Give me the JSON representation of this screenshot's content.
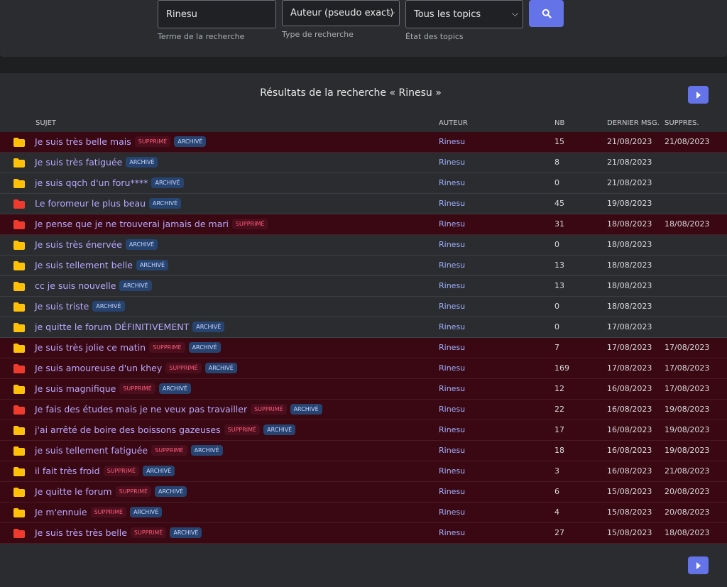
{
  "search": {
    "term": "Rinesu",
    "term_label": "Terme de la recherche",
    "type": "Auteur (pseudo exact)",
    "type_label": "Type de recherche",
    "state": "Tous les topics",
    "state_label": "État des topics"
  },
  "results": {
    "title": "Résultats de la recherche « Rinesu »",
    "columns": [
      "SUJET",
      "AUTEUR",
      "NB",
      "DERNIER MSG.",
      "SUPPRES."
    ],
    "badge_labels": {
      "deleted": "SUPPRIMÉ",
      "archived": "ARCHIVÉ"
    },
    "rows": [
      {
        "folder_color": "#ffc107",
        "subject": "Je suis très belle mais",
        "deleted": true,
        "archived": true,
        "author": "Rinesu",
        "nb": 15,
        "last": "21/08/2023",
        "deleted_on": "21/08/2023"
      },
      {
        "folder_color": "#ffc107",
        "subject": "Je suis très fatiguée",
        "deleted": false,
        "archived": true,
        "author": "Rinesu",
        "nb": 8,
        "last": "21/08/2023",
        "deleted_on": null
      },
      {
        "folder_color": "#ffc107",
        "subject": "je suis qqch d'un foru****",
        "deleted": false,
        "archived": true,
        "author": "Rinesu",
        "nb": 0,
        "last": "21/08/2023",
        "deleted_on": null
      },
      {
        "folder_color": "#f03a2e",
        "subject": "Le foromeur le plus beau",
        "deleted": false,
        "archived": true,
        "author": "Rinesu",
        "nb": 45,
        "last": "19/08/2023",
        "deleted_on": null
      },
      {
        "folder_color": "#f03a2e",
        "subject": "Je pense que je ne trouverai jamais de mari",
        "deleted": true,
        "archived": false,
        "author": "Rinesu",
        "nb": 31,
        "last": "18/08/2023",
        "deleted_on": "18/08/2023"
      },
      {
        "folder_color": "#ffc107",
        "subject": "Je suis très énervée",
        "deleted": false,
        "archived": true,
        "author": "Rinesu",
        "nb": 0,
        "last": "18/08/2023",
        "deleted_on": null
      },
      {
        "folder_color": "#ffc107",
        "subject": "Je suis tellement belle",
        "deleted": false,
        "archived": true,
        "author": "Rinesu",
        "nb": 13,
        "last": "18/08/2023",
        "deleted_on": null
      },
      {
        "folder_color": "#ffc107",
        "subject": "cc je suis nouvelle",
        "deleted": false,
        "archived": true,
        "author": "Rinesu",
        "nb": 13,
        "last": "18/08/2023",
        "deleted_on": null
      },
      {
        "folder_color": "#ffc107",
        "subject": "Je suis triste",
        "deleted": false,
        "archived": true,
        "author": "Rinesu",
        "nb": 0,
        "last": "18/08/2023",
        "deleted_on": null
      },
      {
        "folder_color": "#ffc107",
        "subject": "je quitte le forum DÉFINITIVEMENT",
        "deleted": false,
        "archived": true,
        "author": "Rinesu",
        "nb": 0,
        "last": "17/08/2023",
        "deleted_on": null
      },
      {
        "folder_color": "#ffc107",
        "subject": "Je suis très jolie ce matin",
        "deleted": true,
        "archived": true,
        "author": "Rinesu",
        "nb": 7,
        "last": "17/08/2023",
        "deleted_on": "17/08/2023"
      },
      {
        "folder_color": "#f03a2e",
        "subject": "Je suis amoureuse d'un khey",
        "deleted": true,
        "archived": true,
        "author": "Rinesu",
        "nb": 169,
        "last": "17/08/2023",
        "deleted_on": "17/08/2023"
      },
      {
        "folder_color": "#ffc107",
        "subject": "Je suis magnifique",
        "deleted": true,
        "archived": true,
        "author": "Rinesu",
        "nb": 12,
        "last": "16/08/2023",
        "deleted_on": "17/08/2023"
      },
      {
        "folder_color": "#f03a2e",
        "subject": "Je fais des études mais je ne veux pas travailler",
        "deleted": true,
        "archived": true,
        "author": "Rinesu",
        "nb": 22,
        "last": "16/08/2023",
        "deleted_on": "19/08/2023"
      },
      {
        "folder_color": "#ffc107",
        "subject": "j'ai arrêté de boire des boissons gazeuses",
        "deleted": true,
        "archived": true,
        "author": "Rinesu",
        "nb": 17,
        "last": "16/08/2023",
        "deleted_on": "19/08/2023"
      },
      {
        "folder_color": "#ffc107",
        "subject": "je suis tellement fatiguée",
        "deleted": true,
        "archived": true,
        "author": "Rinesu",
        "nb": 18,
        "last": "16/08/2023",
        "deleted_on": "19/08/2023"
      },
      {
        "folder_color": "#ffc107",
        "subject": "il fait très froid",
        "deleted": true,
        "archived": true,
        "author": "Rinesu",
        "nb": 3,
        "last": "16/08/2023",
        "deleted_on": "21/08/2023"
      },
      {
        "folder_color": "#ffc107",
        "subject": "Je quitte le forum",
        "deleted": true,
        "archived": true,
        "author": "Rinesu",
        "nb": 6,
        "last": "15/08/2023",
        "deleted_on": "20/08/2023"
      },
      {
        "folder_color": "#ffc107",
        "subject": "Je m'ennuie",
        "deleted": true,
        "archived": true,
        "author": "Rinesu",
        "nb": 4,
        "last": "15/08/2023",
        "deleted_on": "20/08/2023"
      },
      {
        "folder_color": "#f03a2e",
        "subject": "Je suis très très belle",
        "deleted": true,
        "archived": true,
        "author": "Rinesu",
        "nb": 27,
        "last": "15/08/2023",
        "deleted_on": "18/08/2023"
      }
    ]
  }
}
